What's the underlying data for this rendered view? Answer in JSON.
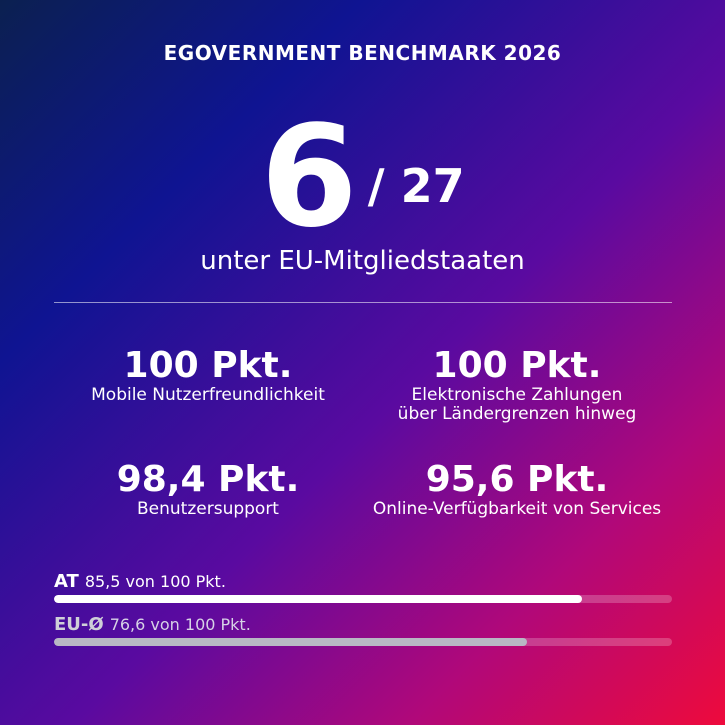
{
  "header": {
    "title": "EGOVERNMENT BENCHMARK 2026"
  },
  "rank": {
    "position": "6",
    "total": "/ 27",
    "subtitle": "unter EU-Mitgliedstaaten"
  },
  "stats": [
    {
      "value": "100 Pkt.",
      "label": "Mobile Nutzerfreundlichkeit"
    },
    {
      "value": "100 Pkt.",
      "label": "Elektronische Zahlungen\nüber Ländergrenzen hinweg"
    },
    {
      "value": "98,4 Pkt.",
      "label": "Benutzersupport"
    },
    {
      "value": "95,6 Pkt.",
      "label": "Online-Verfügbarkeit von Services"
    }
  ],
  "bars": [
    {
      "code": "AT",
      "text": "85,5 von 100 Pkt.",
      "value": 85.5,
      "max": 100,
      "color": "#ffffff"
    },
    {
      "code": "EU-Ø",
      "text": "76,6 von 100 Pkt.",
      "value": 76.6,
      "max": 100,
      "color": "#b8b8c4"
    }
  ]
}
